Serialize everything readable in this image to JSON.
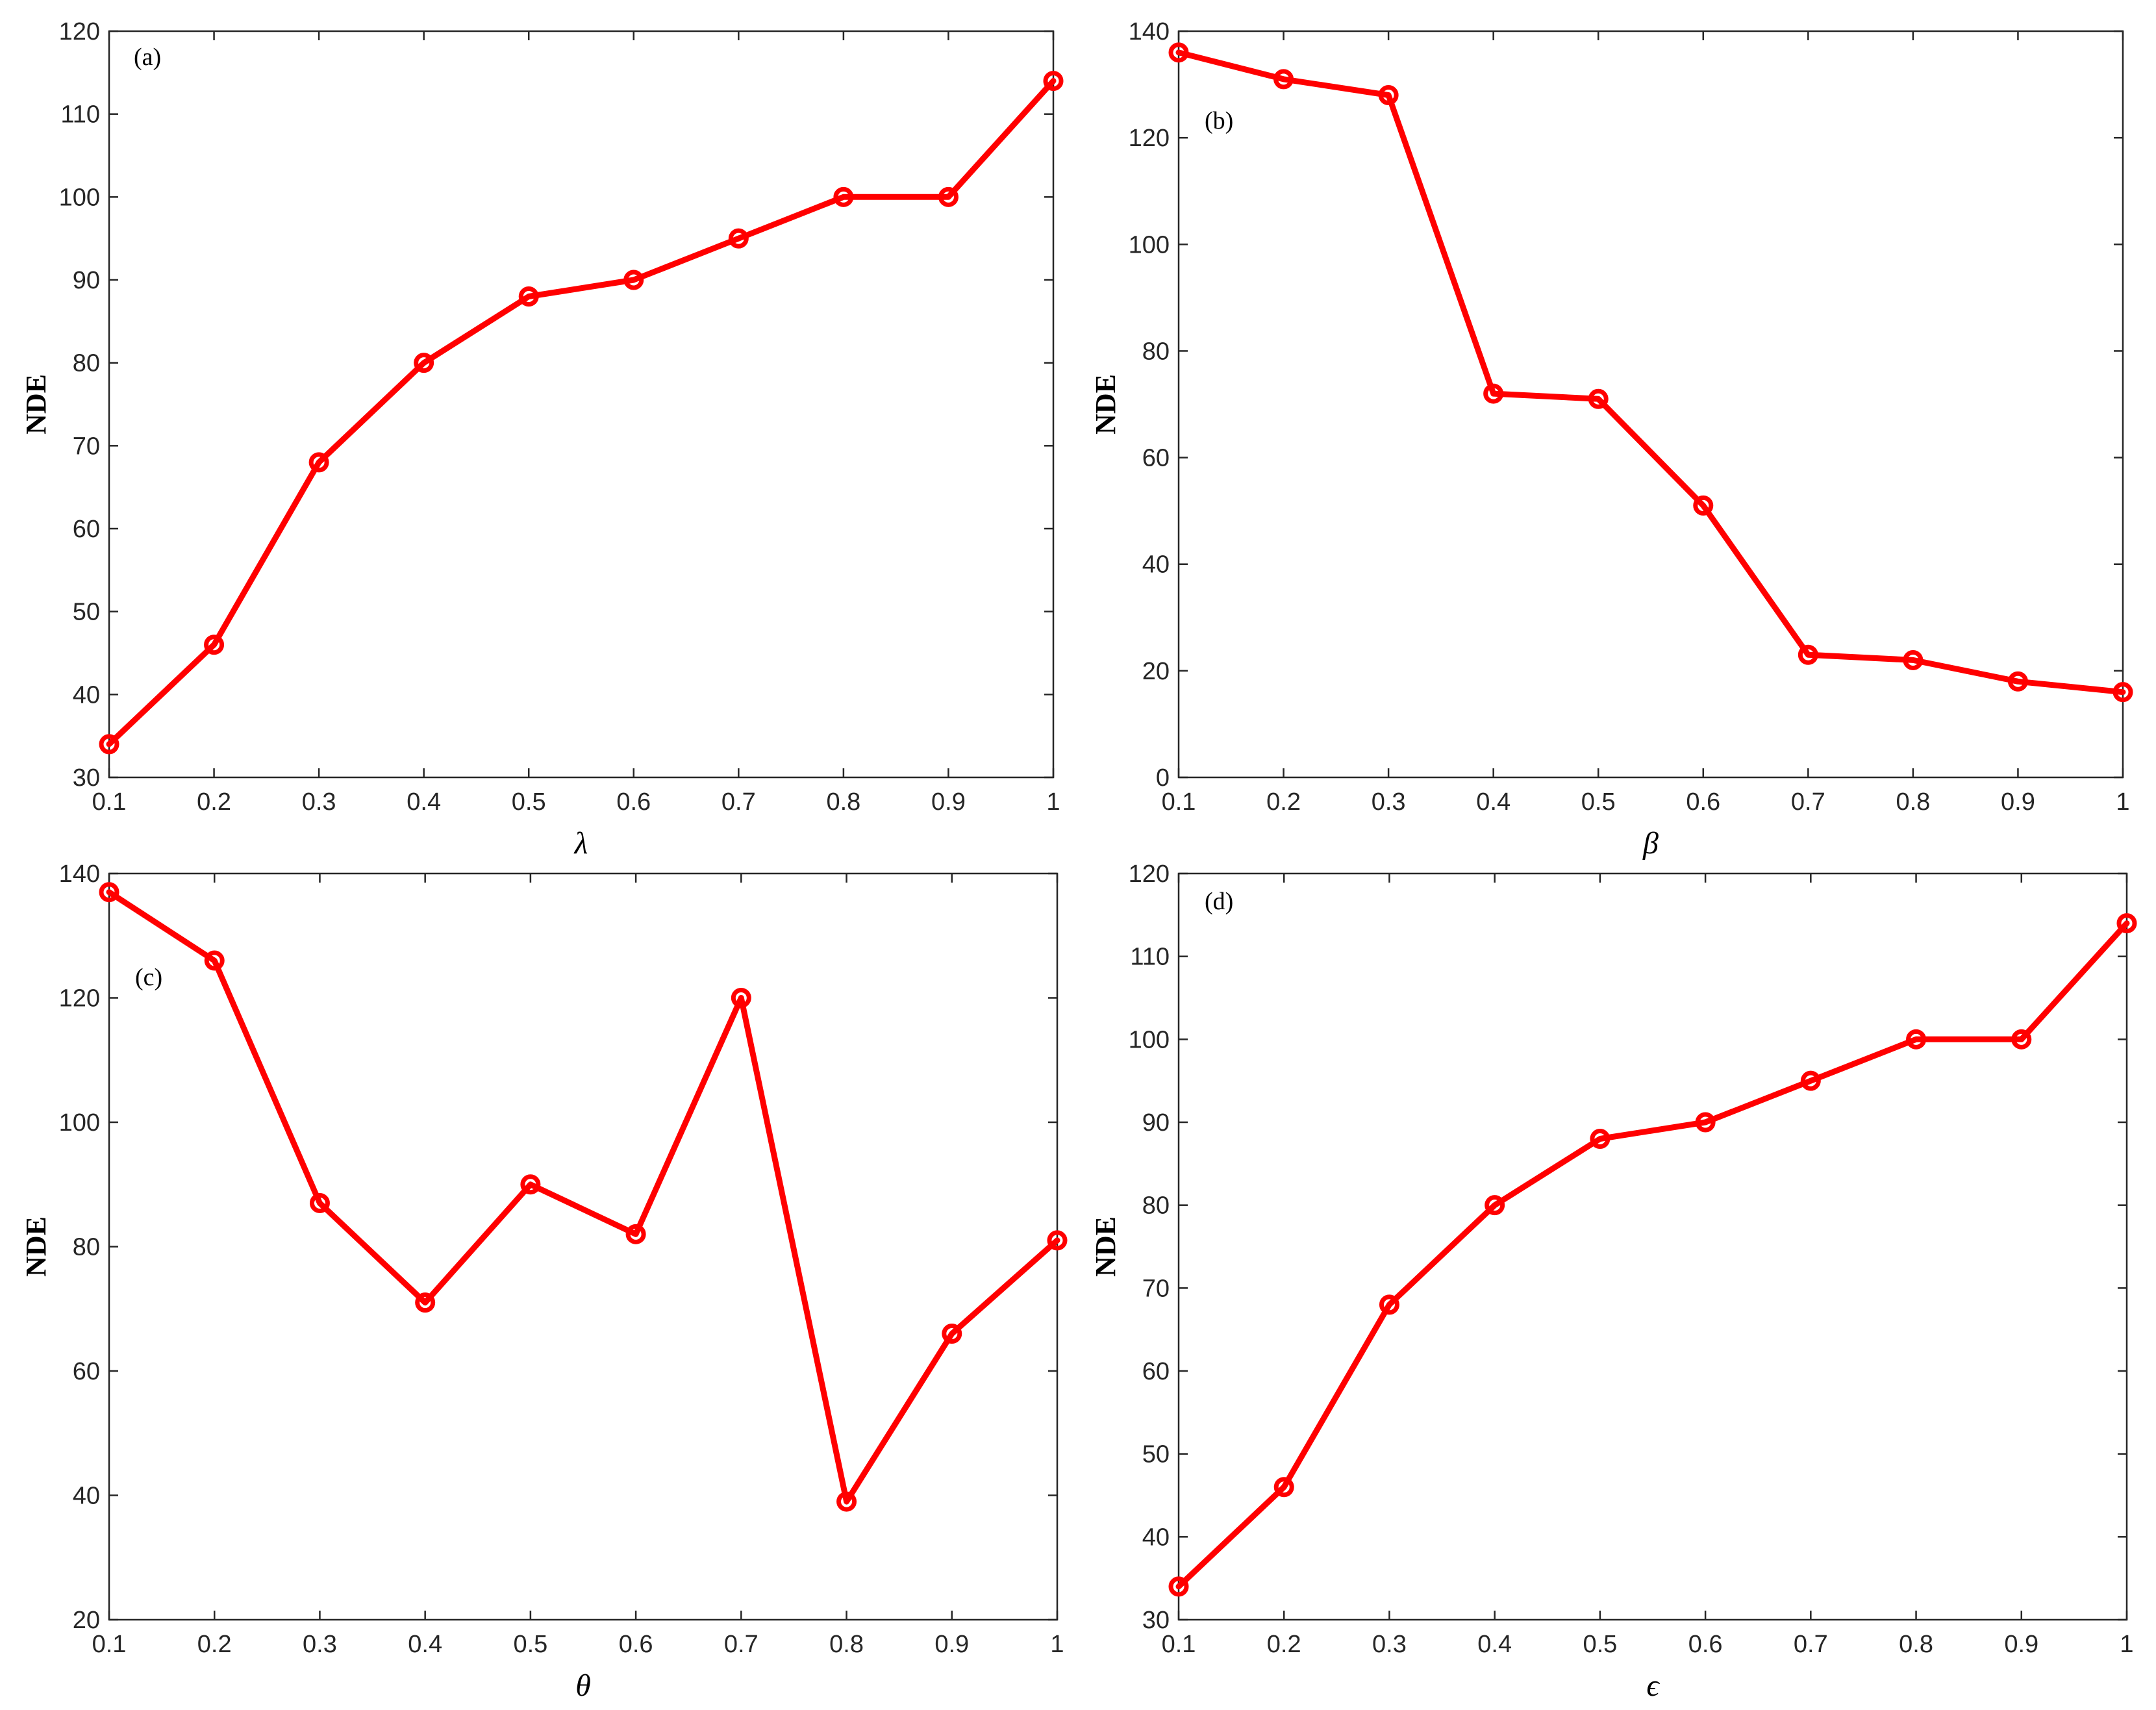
{
  "chart_data": [
    {
      "type": "line",
      "panel_label": "(a)",
      "xlabel": "λ",
      "ylabel": "NDE",
      "x": [
        0.1,
        0.2,
        0.3,
        0.4,
        0.5,
        0.6,
        0.7,
        0.8,
        0.9,
        1.0
      ],
      "xticks": [
        "0.1",
        "0.2",
        "0.3",
        "0.4",
        "0.5",
        "0.6",
        "0.7",
        "0.8",
        "0.9",
        "1"
      ],
      "xlim": [
        0.1,
        1.0
      ],
      "ylim": [
        30,
        120
      ],
      "yticks": [
        30,
        40,
        50,
        60,
        70,
        80,
        90,
        100,
        110,
        120
      ],
      "series": [
        {
          "values": [
            34,
            46,
            68,
            80,
            88,
            90,
            95,
            100,
            100,
            114
          ],
          "color": "#ff0000",
          "marker": "circle"
        }
      ],
      "grid": false,
      "legend": false
    },
    {
      "type": "line",
      "panel_label": "(b)",
      "xlabel": "β",
      "ylabel": "NDE",
      "x": [
        0.1,
        0.2,
        0.3,
        0.4,
        0.5,
        0.6,
        0.7,
        0.8,
        0.9,
        1.0
      ],
      "xticks": [
        "0.1",
        "0.2",
        "0.3",
        "0.4",
        "0.5",
        "0.6",
        "0.7",
        "0.8",
        "0.9",
        "1"
      ],
      "xlim": [
        0.1,
        1.0
      ],
      "ylim": [
        0,
        140
      ],
      "yticks": [
        0,
        20,
        40,
        60,
        80,
        100,
        120,
        140
      ],
      "series": [
        {
          "values": [
            136,
            131,
            128,
            72,
            71,
            51,
            23,
            22,
            18,
            16
          ],
          "color": "#ff0000",
          "marker": "circle"
        }
      ],
      "grid": false,
      "legend": false
    },
    {
      "type": "line",
      "panel_label": "(c)",
      "xlabel": "θ",
      "ylabel": "NDE",
      "x": [
        0.1,
        0.2,
        0.3,
        0.4,
        0.5,
        0.6,
        0.7,
        0.8,
        0.9,
        1.0
      ],
      "xticks": [
        "0.1",
        "0.2",
        "0.3",
        "0.4",
        "0.5",
        "0.6",
        "0.7",
        "0.8",
        "0.9",
        "1"
      ],
      "xlim": [
        0.1,
        1.0
      ],
      "ylim": [
        20,
        140
      ],
      "yticks": [
        20,
        40,
        60,
        80,
        100,
        120,
        140
      ],
      "series": [
        {
          "values": [
            137,
            126,
            87,
            71,
            90,
            82,
            120,
            39,
            66,
            81
          ],
          "color": "#ff0000",
          "marker": "circle"
        }
      ],
      "grid": false,
      "legend": false
    },
    {
      "type": "line",
      "panel_label": "(d)",
      "xlabel": "ϵ",
      "ylabel": "NDE",
      "x": [
        0.1,
        0.2,
        0.3,
        0.4,
        0.5,
        0.6,
        0.7,
        0.8,
        0.9,
        1.0
      ],
      "xticks": [
        "0.1",
        "0.2",
        "0.3",
        "0.4",
        "0.5",
        "0.6",
        "0.7",
        "0.8",
        "0.9",
        "1"
      ],
      "xlim": [
        0.1,
        1.0
      ],
      "ylim": [
        30,
        120
      ],
      "yticks": [
        30,
        40,
        50,
        60,
        70,
        80,
        90,
        100,
        110,
        120
      ],
      "series": [
        {
          "values": [
            34,
            46,
            68,
            80,
            88,
            90,
            95,
            100,
            100,
            114
          ],
          "color": "#ff0000",
          "marker": "circle"
        }
      ],
      "grid": false,
      "legend": false
    }
  ]
}
